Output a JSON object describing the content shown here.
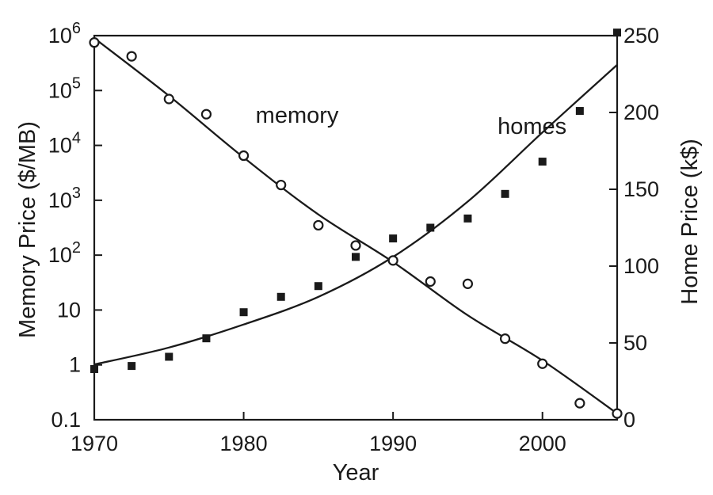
{
  "chart_data": {
    "type": "scatter",
    "xlabel": "Year",
    "ylabel_left": "Memory Price ($/MB)",
    "ylabel_right": "Home Price (k$)",
    "xlim": [
      1970,
      2005
    ],
    "x_ticks": [
      1970,
      1980,
      1990,
      2000
    ],
    "left_axis": {
      "scale": "log",
      "ylim": [
        0.1,
        1000000
      ],
      "ticks": [
        {
          "value": 0.1,
          "base": "0.1",
          "exp": ""
        },
        {
          "value": 1,
          "base": "1",
          "exp": ""
        },
        {
          "value": 10,
          "base": "10",
          "exp": ""
        },
        {
          "value": 100,
          "base": "10",
          "exp": "2"
        },
        {
          "value": 1000,
          "base": "10",
          "exp": "3"
        },
        {
          "value": 10000,
          "base": "10",
          "exp": "4"
        },
        {
          "value": 100000,
          "base": "10",
          "exp": "5"
        },
        {
          "value": 1000000,
          "base": "10",
          "exp": "6"
        }
      ]
    },
    "right_axis": {
      "scale": "linear",
      "ylim": [
        0,
        250
      ],
      "ticks": [
        0,
        50,
        100,
        150,
        200,
        250
      ]
    },
    "series": [
      {
        "name": "memory",
        "axis": "left",
        "marker": "open-circle",
        "points": [
          [
            1970,
            750000
          ],
          [
            1972.5,
            420000
          ],
          [
            1975,
            70000
          ],
          [
            1977.5,
            37000
          ],
          [
            1980,
            6500
          ],
          [
            1982.5,
            1900
          ],
          [
            1985,
            350
          ],
          [
            1987.5,
            150
          ],
          [
            1990,
            80
          ],
          [
            1992.5,
            33
          ],
          [
            1995,
            30
          ],
          [
            1997.5,
            3
          ],
          [
            2000,
            1.05
          ],
          [
            2002.5,
            0.2
          ],
          [
            2005,
            0.13
          ]
        ],
        "fit": [
          [
            1970,
            900000
          ],
          [
            1975,
            80000
          ],
          [
            1980,
            6000
          ],
          [
            1985,
            550
          ],
          [
            1990,
            75
          ],
          [
            1995,
            8
          ],
          [
            2000,
            1.2
          ],
          [
            2005,
            0.13
          ]
        ]
      },
      {
        "name": "homes",
        "axis": "right",
        "marker": "filled-square",
        "points": [
          [
            1970,
            33
          ],
          [
            1972.5,
            35
          ],
          [
            1975,
            41
          ],
          [
            1977.5,
            53
          ],
          [
            1980,
            70
          ],
          [
            1982.5,
            80
          ],
          [
            1985,
            87
          ],
          [
            1987.5,
            106
          ],
          [
            1990,
            118
          ],
          [
            1992.5,
            125
          ],
          [
            1995,
            131
          ],
          [
            1997.5,
            147
          ],
          [
            2000,
            168
          ],
          [
            2002.5,
            201
          ],
          [
            2005,
            252
          ]
        ],
        "fit": [
          [
            1970,
            36
          ],
          [
            1975,
            47
          ],
          [
            1980,
            62
          ],
          [
            1985,
            80
          ],
          [
            1990,
            106
          ],
          [
            1995,
            142
          ],
          [
            2000,
            187
          ],
          [
            2005,
            231
          ]
        ]
      }
    ],
    "annotations": [
      {
        "text": "memory",
        "x": 1980.8,
        "y_left": 26000
      },
      {
        "text": "homes",
        "x": 1997,
        "y_right": 186
      }
    ],
    "grid": false,
    "legend": "none"
  }
}
